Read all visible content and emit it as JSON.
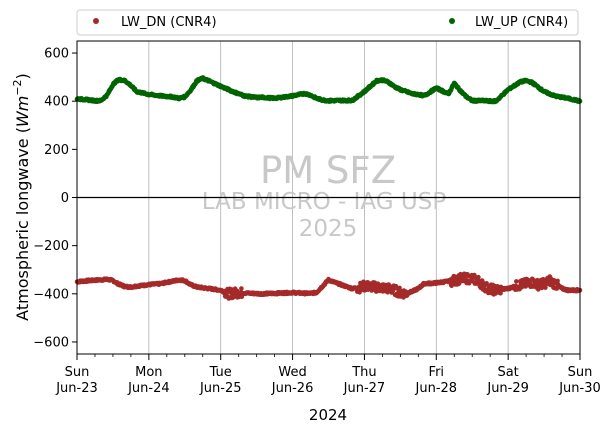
{
  "chart_data": {
    "type": "scatter",
    "xlabel": "2024",
    "ylabel_prefix": "Atmospheric longwave (",
    "ylabel_unit": "Wm",
    "ylabel_exp": "−2",
    "ylabel_suffix": ")",
    "ylim": [
      -650,
      650
    ],
    "yticks": [
      -600,
      -400,
      -200,
      0,
      200,
      400,
      600
    ],
    "xlim": [
      "2024-06-23",
      "2024-06-30"
    ],
    "xticks": [
      {
        "day": "Sun",
        "date": "Jun-23"
      },
      {
        "day": "Mon",
        "date": "Jun-24"
      },
      {
        "day": "Tue",
        "date": "Jun-25"
      },
      {
        "day": "Wed",
        "date": "Jun-26"
      },
      {
        "day": "Thu",
        "date": "Jun-27"
      },
      {
        "day": "Fri",
        "date": "Jun-28"
      },
      {
        "day": "Sat",
        "date": "Jun-29"
      },
      {
        "day": "Sun",
        "date": "Jun-30"
      }
    ],
    "grid": "vertical-major",
    "zero_line": true,
    "legend_placement": "top, above plot",
    "watermark": [
      "PM SFZ",
      "LAB MICRO - IAG USP",
      "2025"
    ],
    "series": [
      {
        "name": "LW_DN (CNR4)",
        "color": "#a52a2a",
        "x_days": [
          0.0,
          0.17,
          0.33,
          0.42,
          0.5,
          0.58,
          0.67,
          0.75,
          0.83,
          1.0,
          1.17,
          1.25,
          1.33,
          1.42,
          1.5,
          1.58,
          1.67,
          1.75,
          1.83,
          2.0,
          2.1,
          2.25,
          2.42,
          2.58,
          2.75,
          3.0,
          3.17,
          3.25,
          3.33,
          3.38,
          3.5,
          3.58,
          3.75,
          3.83,
          3.92,
          4.0,
          4.17,
          4.25,
          4.33,
          4.42,
          4.5,
          4.58,
          4.67,
          4.75,
          4.83,
          5.0,
          5.17,
          5.25,
          5.33,
          5.42,
          5.5,
          5.58,
          5.67,
          5.75,
          5.83,
          6.0,
          6.17,
          6.25,
          6.33,
          6.42,
          6.5,
          6.58,
          6.67,
          6.75,
          6.83,
          7.0
        ],
        "y": [
          -350,
          -345,
          -342,
          -340,
          -345,
          -360,
          -370,
          -372,
          -368,
          -362,
          -358,
          -352,
          -348,
          -342,
          -345,
          -362,
          -372,
          -375,
          -378,
          -385,
          -400,
          -395,
          -398,
          -400,
          -398,
          -395,
          -398,
          -398,
          -395,
          -380,
          -342,
          -352,
          -370,
          -378,
          -375,
          -368,
          -372,
          -375,
          -378,
          -385,
          -395,
          -398,
          -390,
          -378,
          -358,
          -355,
          -348,
          -345,
          -338,
          -336,
          -338,
          -345,
          -370,
          -380,
          -385,
          -378,
          -362,
          -358,
          -352,
          -362,
          -358,
          -345,
          -362,
          -378,
          -385,
          -385
        ]
      },
      {
        "name": "LW_UP (CNR4)",
        "color": "#006400",
        "x_days": [
          0.0,
          0.17,
          0.25,
          0.33,
          0.42,
          0.5,
          0.58,
          0.67,
          0.75,
          0.83,
          1.0,
          1.17,
          1.25,
          1.33,
          1.42,
          1.5,
          1.58,
          1.67,
          1.75,
          1.83,
          2.0,
          2.17,
          2.33,
          2.42,
          2.5,
          2.58,
          2.75,
          3.0,
          3.17,
          3.25,
          3.33,
          3.42,
          3.5,
          3.58,
          3.67,
          3.75,
          3.83,
          4.0,
          4.17,
          4.25,
          4.33,
          4.42,
          4.5,
          4.58,
          4.67,
          4.75,
          4.83,
          5.0,
          5.17,
          5.25,
          5.33,
          5.42,
          5.5,
          5.58,
          5.67,
          5.75,
          5.83,
          6.0,
          6.17,
          6.25,
          6.33,
          6.42,
          6.5,
          6.58,
          6.67,
          6.83,
          7.0
        ],
        "y": [
          410,
          405,
          402,
          402,
          425,
          470,
          490,
          485,
          465,
          440,
          428,
          422,
          420,
          418,
          412,
          418,
          445,
          485,
          495,
          485,
          462,
          440,
          422,
          418,
          415,
          416,
          412,
          422,
          432,
          425,
          412,
          405,
          402,
          402,
          403,
          403,
          403,
          440,
          485,
          488,
          480,
          460,
          448,
          440,
          430,
          428,
          422,
          455,
          430,
          475,
          445,
          418,
          402,
          402,
          402,
          400,
          400,
          448,
          480,
          485,
          478,
          458,
          440,
          430,
          420,
          412,
          400
        ]
      }
    ]
  }
}
